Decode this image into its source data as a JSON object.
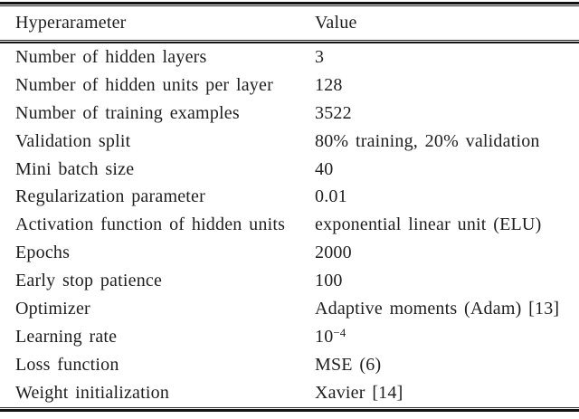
{
  "table": {
    "columns": [
      {
        "label": "Hyperarameter"
      },
      {
        "label": "Value"
      }
    ],
    "rows": [
      {
        "param": "Number of hidden layers",
        "value": "3"
      },
      {
        "param": "Number of hidden units per layer",
        "value": "128"
      },
      {
        "param": "Number of training examples",
        "value": "3522"
      },
      {
        "param": "Validation split",
        "value": "80% training, 20% validation"
      },
      {
        "param": "Mini batch size",
        "value": "40"
      },
      {
        "param": "Regularization parameter",
        "value": "0.01"
      },
      {
        "param": "Activation function of hidden units",
        "value": "exponential linear unit (ELU)"
      },
      {
        "param": "Epochs",
        "value": "2000"
      },
      {
        "param": "Early stop patience",
        "value": "100"
      },
      {
        "param": "Optimizer",
        "value": "Adaptive moments (Adam) [13]"
      },
      {
        "param": "Learning rate",
        "value": "10",
        "value_sup": "−4"
      },
      {
        "param": "Loss function",
        "value": "MSE (6)"
      },
      {
        "param": "Weight initialization",
        "value": "Xavier [14]"
      }
    ],
    "colors": {
      "background": "#ffffff",
      "text": "#1e1e1e",
      "rule": "#131313"
    }
  }
}
